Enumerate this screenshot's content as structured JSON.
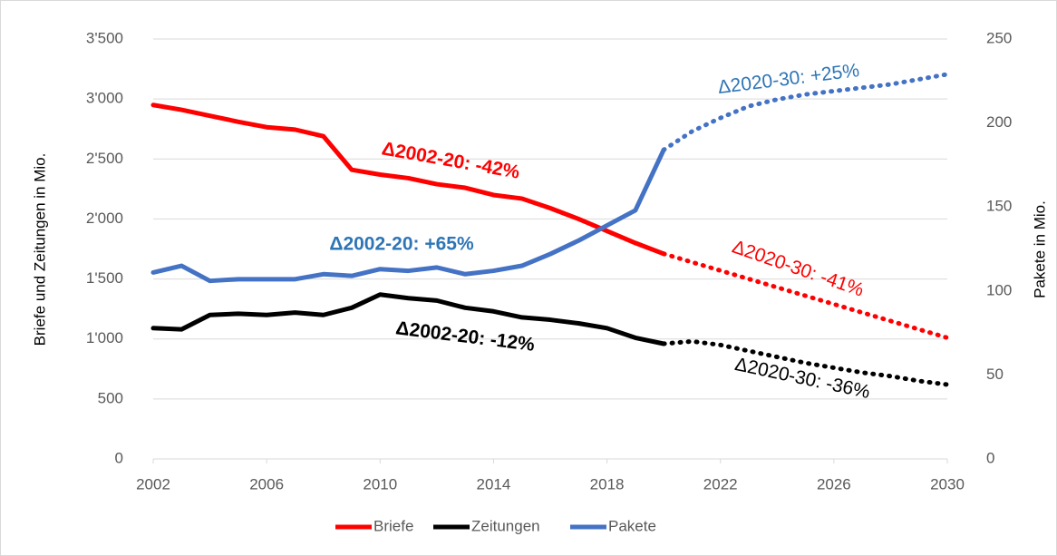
{
  "chart_data": {
    "type": "line",
    "x": [
      2002,
      2003,
      2004,
      2005,
      2006,
      2007,
      2008,
      2009,
      2010,
      2011,
      2012,
      2013,
      2014,
      2015,
      2016,
      2017,
      2018,
      2019,
      2020,
      2021,
      2022,
      2023,
      2024,
      2025,
      2026,
      2027,
      2028,
      2029,
      2030
    ],
    "series": [
      {
        "name": "Briefe",
        "color": "#ff0000",
        "axis": "y",
        "values": [
          2950,
          2910,
          2860,
          2810,
          2765,
          2745,
          2690,
          2410,
          2370,
          2340,
          2290,
          2260,
          2200,
          2170,
          2090,
          2000,
          1900,
          1800,
          1710,
          1640,
          1570,
          1500,
          1430,
          1360,
          1290,
          1220,
          1150,
          1080,
          1010
        ]
      },
      {
        "name": "Zeitungen",
        "color": "#000000",
        "axis": "y",
        "values": [
          1090,
          1080,
          1200,
          1210,
          1200,
          1220,
          1200,
          1260,
          1370,
          1340,
          1320,
          1260,
          1230,
          1180,
          1160,
          1130,
          1090,
          1010,
          960,
          980,
          950,
          900,
          850,
          800,
          760,
          720,
          690,
          650,
          620
        ]
      },
      {
        "name": "Pakete",
        "color": "#4472c4",
        "axis": "y2",
        "values": [
          111,
          115,
          106,
          107,
          107,
          107,
          110,
          109,
          113,
          112,
          114,
          110,
          112,
          115,
          122,
          130,
          139,
          148,
          184,
          195,
          203,
          210,
          214,
          217,
          219,
          221,
          223,
          226,
          229
        ]
      }
    ],
    "forecast_from_x": 2020,
    "xlim": [
      2002,
      2030
    ],
    "xticks": [
      2002,
      2006,
      2010,
      2014,
      2018,
      2022,
      2026,
      2030
    ],
    "ylim": [
      0,
      3500
    ],
    "yticks": [
      0,
      500,
      {
        "value": 1000,
        "label": "1'000"
      },
      {
        "value": 1500,
        "label": "1'500"
      },
      {
        "value": 2000,
        "label": "2'000"
      },
      {
        "value": 2500,
        "label": "2'500"
      },
      {
        "value": 3000,
        "label": "3'000"
      },
      {
        "value": 3500,
        "label": "3'500"
      }
    ],
    "y2lim": [
      0,
      250
    ],
    "y2ticks": [
      0,
      50,
      100,
      150,
      200,
      250
    ],
    "ylabel": "Briefe und Zeitungen in Mio.",
    "y2label": "Pakete in Mio.",
    "grid": true,
    "legend": "bottom",
    "annotations": [
      {
        "text": "Δ2002-20: -42%",
        "color": "#ff0000"
      },
      {
        "text": "Δ2020-30: -41%",
        "color": "#ff0000"
      },
      {
        "text": "Δ2020-30: +25%",
        "color": "#2e75b6"
      },
      {
        "text": "Δ2002-20: +65%",
        "color": "#2e75b6"
      },
      {
        "text": "Δ2002-20: -12%",
        "color": "#000000"
      },
      {
        "text": "Δ2020-30: -36%",
        "color": "#000000"
      }
    ]
  }
}
